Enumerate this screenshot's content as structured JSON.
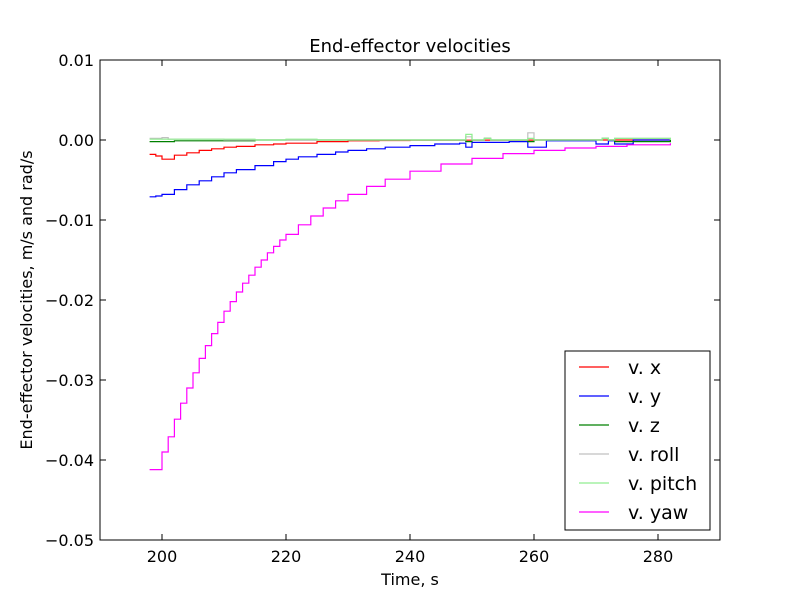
{
  "chart_data": {
    "type": "line",
    "title": "End-effector velocities",
    "xlabel": "Time, s",
    "ylabel": "End-effector velocities, m/s and rad/s",
    "xlim": [
      190,
      290
    ],
    "ylim": [
      -0.05,
      0.01
    ],
    "xticks": [
      200,
      220,
      240,
      260,
      280
    ],
    "xtick_labels": [
      "200",
      "220",
      "240",
      "260",
      "280"
    ],
    "yticks": [
      0.01,
      0.0,
      -0.01,
      -0.02,
      -0.03,
      -0.04,
      -0.05
    ],
    "ytick_labels": [
      "0.01",
      "0.00",
      "−0.01",
      "−0.02",
      "−0.03",
      "−0.04",
      "−0.05"
    ],
    "grid": false,
    "legend_position": "bottom-right",
    "step_width": 1,
    "series": [
      {
        "name": "v. x",
        "color": "#ff0000",
        "x": [
          198,
          199,
          200,
          202,
          204,
          206,
          208,
          210,
          212,
          215,
          218,
          220,
          225,
          230,
          235,
          240,
          250,
          260,
          270,
          282
        ],
        "y": [
          -0.0018,
          -0.002,
          -0.0024,
          -0.0019,
          -0.0016,
          -0.0013,
          -0.0011,
          -0.0009,
          -0.0008,
          -0.0006,
          -0.0005,
          -0.0004,
          -0.0002,
          -0.0001,
          -6e-05,
          -3e-05,
          -1e-05,
          0.0,
          0.0,
          0.0
        ]
      },
      {
        "name": "v. y",
        "color": "#0000ff",
        "x": [
          198,
          199,
          200,
          202,
          204,
          206,
          208,
          210,
          212,
          215,
          218,
          220,
          222,
          225,
          228,
          230,
          233,
          236,
          240,
          244,
          248,
          249,
          250,
          253,
          256,
          258,
          259,
          262,
          266,
          269,
          270,
          272,
          273,
          276,
          279,
          282
        ],
        "y": [
          -0.0071,
          -0.007,
          -0.0068,
          -0.0062,
          -0.0056,
          -0.0051,
          -0.0046,
          -0.0041,
          -0.0037,
          -0.0032,
          -0.0027,
          -0.0024,
          -0.0021,
          -0.0018,
          -0.0015,
          -0.0013,
          -0.0011,
          -0.0009,
          -0.0007,
          -0.0005,
          -0.0004,
          -0.0009,
          -0.0003,
          -0.0003,
          -0.0002,
          -0.0002,
          -0.0009,
          -0.0001,
          -0.0001,
          -0.0001,
          -0.0005,
          -0.0001,
          -0.0005,
          0.0,
          0.0,
          0.0
        ]
      },
      {
        "name": "v. z",
        "color": "#008000",
        "x": [
          198,
          200,
          202,
          205,
          210,
          215,
          220,
          225,
          230,
          240,
          248,
          249,
          250,
          252,
          253,
          258,
          259,
          260,
          270,
          271,
          272,
          273,
          282
        ],
        "y": [
          -0.0002,
          -0.0002,
          -0.0001,
          -0.0001,
          -0.0001,
          0.0,
          0.0,
          0.0,
          0.0,
          0.0,
          0.0,
          -0.0002,
          0.0,
          0.0002,
          0.0,
          0.0,
          -0.0002,
          0.0,
          0.0,
          0.0002,
          0.0,
          -0.0002,
          0.0
        ]
      },
      {
        "name": "v. roll",
        "color": "#c0c0c0",
        "x": [
          198,
          199,
          200,
          201,
          205,
          210,
          220,
          230,
          240,
          248,
          249,
          250,
          252,
          253,
          258,
          259,
          260,
          270,
          271,
          272,
          273,
          282
        ],
        "y": [
          0.0002,
          0.0002,
          0.0003,
          0.0001,
          0.0001,
          0.0,
          0.0,
          0.0,
          0.0,
          0.0,
          0.0004,
          0.0,
          0.0002,
          0.0,
          0.0,
          0.0009,
          0.0,
          0.0,
          0.0002,
          0.0,
          0.0002,
          0.0
        ]
      },
      {
        "name": "v. pitch",
        "color": "#90ee90",
        "x": [
          198,
          200,
          205,
          210,
          215,
          220,
          225,
          230,
          240,
          248,
          249,
          250,
          252,
          253,
          258,
          259,
          260,
          270,
          271,
          272,
          273,
          282
        ],
        "y": [
          0.0001,
          0.0001,
          0.0001,
          0.0001,
          0.0,
          0.0001,
          0.0,
          0.0,
          0.0,
          0.0,
          0.0007,
          0.0,
          0.0002,
          0.0,
          0.0,
          0.0002,
          0.0,
          0.0,
          0.0002,
          0.0,
          0.0002,
          0.0
        ]
      },
      {
        "name": "v. yaw",
        "color": "#ff00ff",
        "x": [
          198,
          199,
          200,
          201,
          202,
          203,
          204,
          205,
          206,
          207,
          208,
          209,
          210,
          211,
          212,
          213,
          214,
          215,
          216,
          217,
          218,
          219,
          220,
          222,
          224,
          226,
          228,
          230,
          233,
          236,
          240,
          245,
          250,
          255,
          260,
          265,
          270,
          275,
          282
        ],
        "y": [
          -0.0412,
          -0.0412,
          -0.039,
          -0.0371,
          -0.0349,
          -0.0329,
          -0.031,
          -0.0291,
          -0.0273,
          -0.0257,
          -0.0242,
          -0.0228,
          -0.0214,
          -0.0202,
          -0.019,
          -0.0179,
          -0.0169,
          -0.0159,
          -0.015,
          -0.0141,
          -0.0133,
          -0.0125,
          -0.0118,
          -0.0106,
          -0.0095,
          -0.0085,
          -0.0076,
          -0.0068,
          -0.0058,
          -0.0049,
          -0.0039,
          -0.003,
          -0.0023,
          -0.0017,
          -0.0013,
          -0.001,
          -0.0008,
          -0.0006,
          -0.0004
        ]
      }
    ]
  }
}
